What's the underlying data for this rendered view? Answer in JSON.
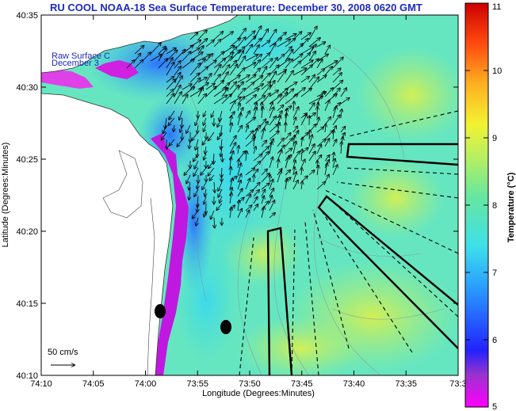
{
  "header": {
    "title": "RU COOL  NOAA-18  Sea Surface Temperature:  December 30, 2008 0620 GMT"
  },
  "overlay": {
    "line1": "Raw Surface C",
    "line2": "December 3"
  },
  "axes": {
    "x_label": "Longitude (Degrees:Minutes)",
    "y_label": "Latitude (Degrees:Minutes)",
    "x_ticks": [
      "74:10",
      "74:05",
      "74:00",
      "73:55",
      "73:50",
      "73:45",
      "73:40",
      "73:35",
      "73:3"
    ],
    "y_ticks": [
      "40:35",
      "40:30",
      "40:25",
      "40:20",
      "40:15",
      "40:10"
    ]
  },
  "colorbar": {
    "label": "Temperature (°C)",
    "ticks": [
      "11",
      "10",
      "9",
      "8",
      "7",
      "6",
      "5"
    ],
    "min": 5,
    "max": 11
  },
  "scale": {
    "label": "50 cm/s"
  },
  "colors": {
    "title": "#1d2bbd",
    "water_base": "#66e6c0",
    "land": "#ffffff"
  }
}
